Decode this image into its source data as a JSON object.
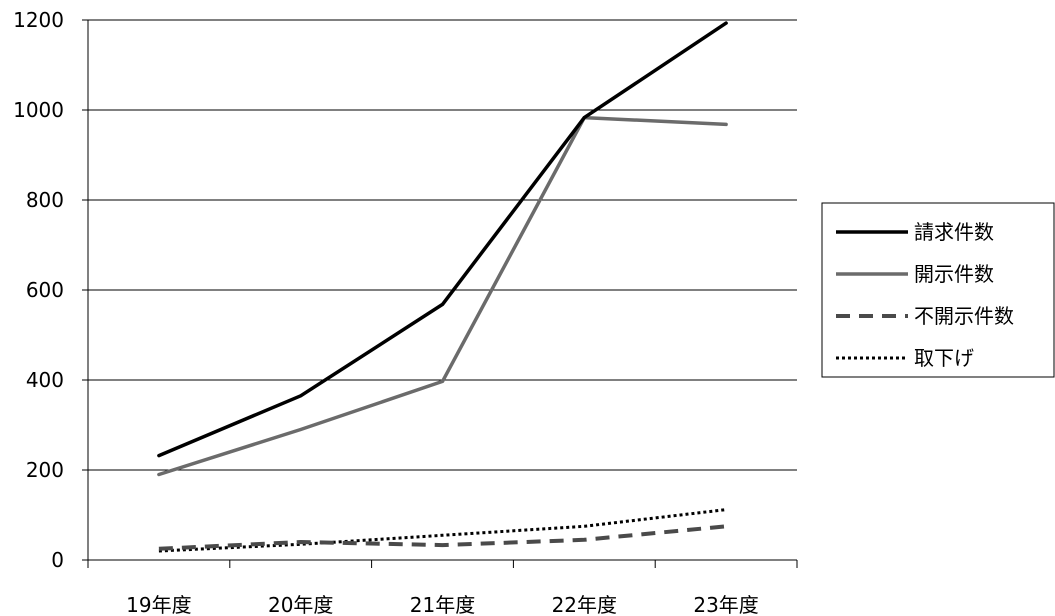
{
  "chart_data": {
    "type": "line",
    "title": "",
    "xlabel": "",
    "ylabel": "",
    "categories": [
      "19年度",
      "20年度",
      "21年度",
      "22年度",
      "23年度"
    ],
    "ylim": [
      0,
      1200
    ],
    "yticks": [
      0,
      200,
      400,
      600,
      800,
      1000,
      1200
    ],
    "grid": true,
    "legend_position": "right",
    "series": [
      {
        "name": "請求件数",
        "values": [
          232,
          365,
          568,
          983,
          1193
        ],
        "color": "#000000",
        "style": "solid"
      },
      {
        "name": "開示件数",
        "values": [
          190,
          290,
          397,
          983,
          968
        ],
        "color": "#6b6b6b",
        "style": "solid"
      },
      {
        "name": "不開示件数",
        "values": [
          25,
          40,
          33,
          45,
          75
        ],
        "color": "#4a4a4a",
        "style": "dashed"
      },
      {
        "name": "取下げ",
        "values": [
          20,
          35,
          55,
          75,
          112
        ],
        "color": "#000000",
        "style": "dotted"
      }
    ]
  }
}
